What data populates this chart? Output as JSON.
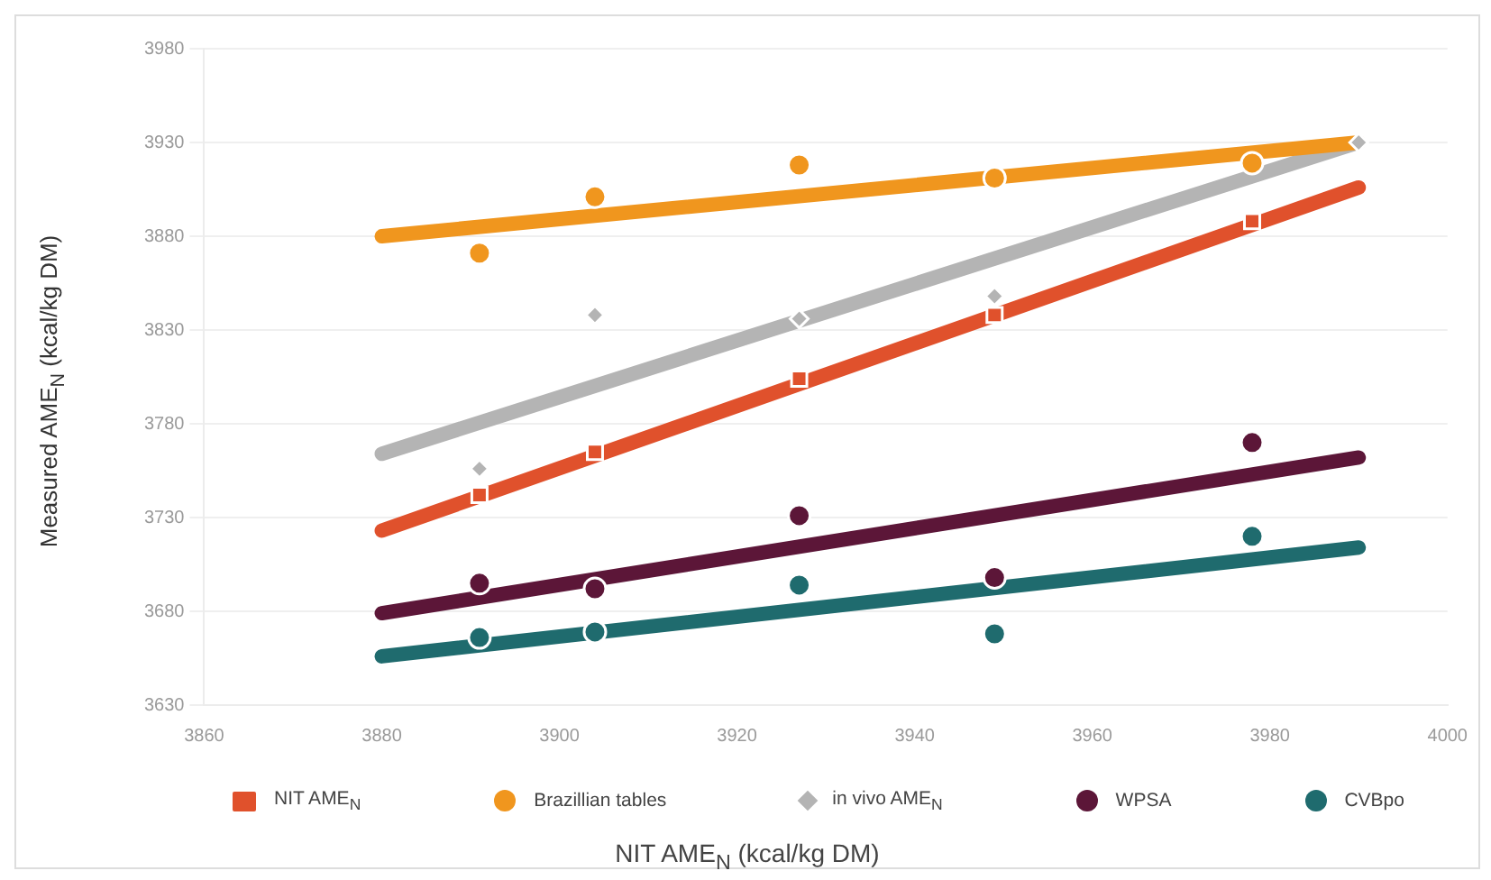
{
  "chart_data": {
    "type": "scatter",
    "xlabel": "NIT AME$_{N}$ (kcal/kg DM)",
    "ylabel": "Measured AME$_{N}$ (kcal/kg DM)",
    "xlim": [
      3860,
      4000
    ],
    "xticks": [
      3860,
      3880,
      3900,
      3920,
      3940,
      3960,
      3980,
      4000
    ],
    "ylim": [
      3630,
      3980
    ],
    "yticks": [
      3630,
      3680,
      3730,
      3780,
      3830,
      3880,
      3930,
      3980
    ],
    "grid": "y",
    "legend": "bottom",
    "series": [
      {
        "type": "line",
        "color": "#e0512c",
        "x": [
          3880,
          3990
        ],
        "values": [
          3723,
          3906
        ]
      },
      {
        "type": "line",
        "color": "#f0961e",
        "x": [
          3880,
          3990
        ],
        "values": [
          3880,
          3930
        ]
      },
      {
        "type": "line",
        "color": "#b4b4b4",
        "x": [
          3880,
          3990
        ],
        "values": [
          3764,
          3930
        ]
      },
      {
        "type": "line",
        "color": "#5c1638",
        "x": [
          3880,
          3990
        ],
        "values": [
          3679,
          3762
        ]
      },
      {
        "type": "line",
        "color": "#1f6b6e",
        "x": [
          3880,
          3990
        ],
        "values": [
          3656,
          3714
        ]
      },
      {
        "name": "NIT AME$_{N}$",
        "marker": "square",
        "color": "#e0512c",
        "x": [
          3891,
          3904,
          3927,
          3949,
          3978
        ],
        "values": [
          3742,
          3765,
          3804,
          3838,
          3888
        ]
      },
      {
        "name": "Brazillian tables",
        "marker": "circle",
        "color": "#f0961e",
        "x": [
          3891,
          3904,
          3927,
          3949,
          3978
        ],
        "values": [
          3871,
          3901,
          3918,
          3911,
          3919
        ]
      },
      {
        "name": "in vivo AME$_{N}$",
        "marker": "diamond",
        "color": "#b4b4b4",
        "x": [
          3891,
          3904,
          3927,
          3949,
          3990
        ],
        "values": [
          3756,
          3838,
          3836,
          3848,
          3930
        ]
      },
      {
        "name": "WPSA",
        "marker": "circle",
        "color": "#5c1638",
        "x": [
          3891,
          3904,
          3927,
          3949,
          3978
        ],
        "values": [
          3695,
          3692,
          3731,
          3698,
          3770
        ]
      },
      {
        "name": "CVBpo",
        "marker": "circle",
        "color": "#1f6b6e",
        "x": [
          3891,
          3904,
          3927,
          3949,
          3978
        ],
        "values": [
          3666,
          3669,
          3694,
          3668,
          3720
        ]
      }
    ]
  }
}
